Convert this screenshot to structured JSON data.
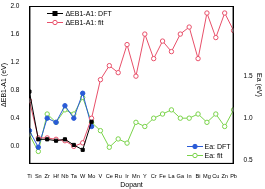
{
  "chart_data": {
    "type": "line",
    "x_label": "Dopant",
    "y_label": "ΔEB1-A1 (eV)",
    "y2_label": "Ea (eV)",
    "categories": [
      "Ti",
      "Sn",
      "Zr",
      "Hf",
      "Nb",
      "Ta",
      "W",
      "Mo",
      "V",
      "Ce",
      "Ru",
      "Ir",
      "Mn",
      "Y",
      "Cr",
      "Fe",
      "La",
      "Ga",
      "In",
      "Bi",
      "Mg",
      "Cu",
      "Zn",
      "Pb"
    ],
    "series": [
      {
        "name": "ΔEB1-A1: DFT",
        "color": "#000000",
        "marker": "square",
        "line_style": "solid",
        "values": [
          0.78,
          0.1,
          0.1,
          0.08,
          0.1,
          0.02,
          -0.05,
          0.35,
          null,
          null,
          null,
          null,
          null,
          null,
          null,
          null,
          null,
          null,
          null,
          null,
          null,
          null,
          null,
          null
        ]
      },
      {
        "name": "ΔEB1-A1: fit",
        "color": "#e8506a",
        "marker": "open_circle",
        "line_style": "solid",
        "values": [
          0.65,
          0.12,
          0.12,
          0.1,
          0.08,
          0.0,
          0.05,
          0.4,
          0.95,
          1.15,
          1.05,
          1.45,
          1.0,
          1.6,
          1.25,
          1.5,
          1.35,
          1.6,
          1.7,
          1.25,
          1.9,
          1.55,
          1.9,
          1.65
        ]
      },
      {
        "name": "Ea: DFT",
        "color": "#2a5bd7",
        "marker": "circle",
        "line_style": "solid",
        "axis": "y2",
        "values": [
          0.85,
          0.65,
          1.0,
          0.95,
          1.15,
          1.0,
          1.3,
          0.9,
          null,
          null,
          null,
          null,
          null,
          null,
          null,
          null,
          null,
          null,
          null,
          null,
          null,
          null,
          null,
          null
        ]
      },
      {
        "name": "Ea: fit",
        "color": "#7ad34a",
        "marker": "open_circle",
        "line_style": "solid",
        "axis": "y2",
        "values": [
          0.8,
          0.6,
          1.05,
          0.95,
          1.1,
          1.05,
          1.25,
          0.95,
          0.85,
          0.65,
          0.75,
          0.7,
          0.95,
          0.9,
          1.0,
          1.05,
          1.1,
          1.0,
          1.0,
          1.05,
          0.95,
          1.05,
          0.9,
          1.1
        ]
      }
    ],
    "ylim": [
      -0.25,
      2.0
    ],
    "yticks": [
      {
        "value": 0,
        "label": "0.0"
      },
      0.4,
      0.8,
      1.2,
      1.6,
      {
        "value": 2,
        "label": "2.0"
      }
    ],
    "y2lim": [
      0.45,
      2.35
    ],
    "y2ticks": [
      0.5,
      {
        "value": 1,
        "label": "1.0"
      },
      1.5
    ],
    "grid": false,
    "legend": "upper left"
  }
}
